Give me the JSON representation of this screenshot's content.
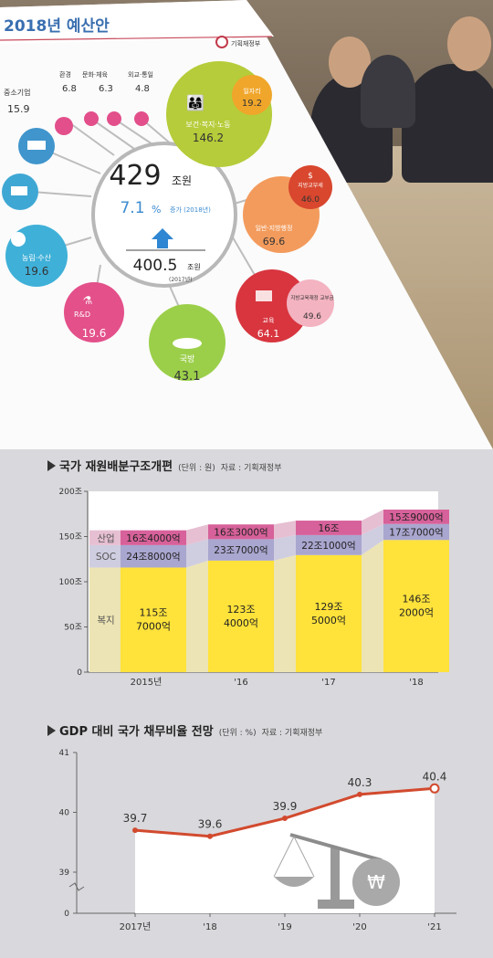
{
  "poster": {
    "title": "2018년 예산안",
    "ministry": "기획재정부",
    "center_total": "429",
    "center_unit": "조원",
    "growth_pct": "7.1",
    "growth_pct_sign": "%",
    "growth_note": "증가 (2018년)",
    "prev_total": "400.5",
    "prev_unit": "조원",
    "prev_year": "(2017년)",
    "bubbles": [
      {
        "label": "보건·복지·노동",
        "value": "146.2"
      },
      {
        "label": "일자리",
        "value": "19.2"
      },
      {
        "label": "지방교부세",
        "value": "46.0"
      },
      {
        "label": "일반·지방행정",
        "value": "69.6"
      },
      {
        "label": "지방교육재정 교부금",
        "value": "49.6"
      },
      {
        "label": "교육",
        "value": "64.1"
      },
      {
        "label": "국방",
        "value": "43.1"
      },
      {
        "label": "R&D",
        "value": "19.6"
      },
      {
        "label": "농림·수산",
        "value": "19.6"
      },
      {
        "label": "중소기업",
        "value": "15.9"
      },
      {
        "label": "환경",
        "value": "6.8"
      },
      {
        "label": "문화·체육",
        "value": "6.3"
      },
      {
        "label": "외교·통일",
        "value": "4.8"
      }
    ]
  },
  "chart_data": [
    {
      "type": "bar",
      "title": "국가 재원배분구조개편",
      "unit_note": "(단위 : 원)",
      "source": "자료 : 기획재정부",
      "categories": [
        "2015년",
        "'16",
        "'17",
        "'18"
      ],
      "y_ticks": [
        "0",
        "50조",
        "100조",
        "150조",
        "200조"
      ],
      "ylim": [
        0,
        200
      ],
      "stacked": true,
      "series": [
        {
          "name": "복지",
          "values": [
            115.7,
            123.4,
            129.5,
            146.2
          ],
          "labels": [
            "115조 7000억",
            "123조 4000억",
            "129조 5000억",
            "146조 2000억"
          ]
        },
        {
          "name": "SOC",
          "values": [
            24.8,
            23.7,
            22.1,
            17.7
          ],
          "labels": [
            "24조8000억",
            "23조7000억",
            "22조1000억",
            "17조7000억"
          ]
        },
        {
          "name": "산업",
          "values": [
            16.4,
            16.3,
            16.0,
            15.9
          ],
          "labels": [
            "16조4000억",
            "16조3000억",
            "16조",
            "15조9000억"
          ]
        }
      ],
      "colors": {
        "welfare": "#ffe23a",
        "soc": "#a9a6cf",
        "industry": "#d7619a",
        "welfare_fade": "#ece4b4",
        "soc_fade": "#cfcde0",
        "industry_fade": "#e6bfd2"
      }
    },
    {
      "type": "line",
      "title": "GDP 대비 국가 채무비율 전망",
      "unit_note": "(단위 : %)",
      "source": "자료 : 기획재정부",
      "x": [
        "2017년",
        "'18",
        "'19",
        "'20",
        "'21"
      ],
      "values": [
        39.7,
        39.6,
        39.9,
        40.3,
        40.4
      ],
      "labels": [
        "39.7",
        "39.6",
        "39.9",
        "40.3",
        "40.4"
      ],
      "y_ticks": [
        "0",
        "39",
        "40",
        "41"
      ],
      "ylim": [
        39,
        41
      ],
      "axis_break": true,
      "line_color": "#d24a2e"
    }
  ]
}
